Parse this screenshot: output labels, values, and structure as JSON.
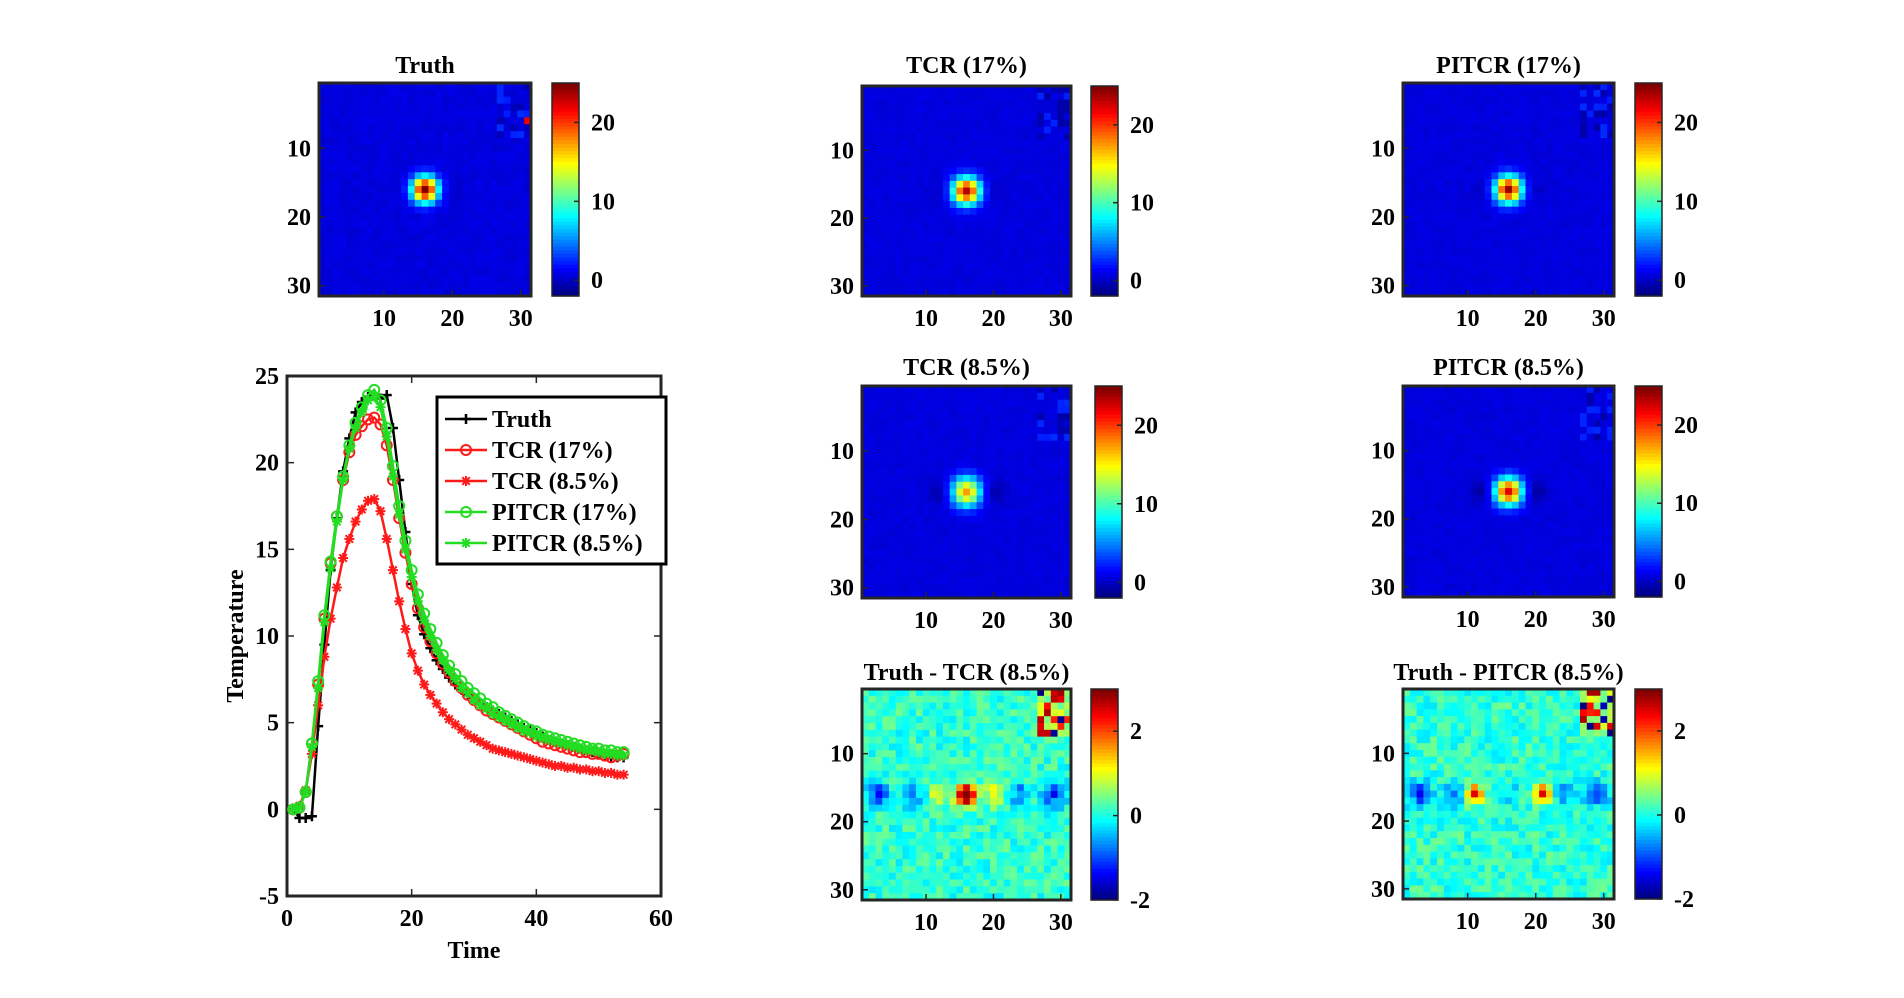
{
  "chart_data": [
    {
      "type": "heatmap",
      "id": "truth",
      "title": "Truth",
      "xticks": [
        "10",
        "20",
        "30"
      ],
      "yticks": [
        "10",
        "20",
        "30"
      ],
      "colorbar_ticks": [
        "0",
        "10",
        "20"
      ],
      "clim": [
        -2,
        25
      ],
      "peak": 25,
      "spot_sigma": 1.3,
      "dark_lobes": 0.5,
      "noise": 0.6,
      "corner_artifacts": true
    },
    {
      "type": "heatmap",
      "id": "tcr17",
      "title": "TCR (17%)",
      "xticks": [
        "10",
        "20",
        "30"
      ],
      "yticks": [
        "10",
        "20",
        "30"
      ],
      "colorbar_ticks": [
        "0",
        "10",
        "20"
      ],
      "clim": [
        -2,
        25
      ],
      "peak": 23,
      "spot_sigma": 1.4,
      "dark_lobes": 0.6,
      "noise": 0.5,
      "corner_artifacts": true
    },
    {
      "type": "heatmap",
      "id": "pitcr17",
      "title": "PITCR (17%)",
      "xticks": [
        "10",
        "20",
        "30"
      ],
      "yticks": [
        "10",
        "20",
        "30"
      ],
      "colorbar_ticks": [
        "0",
        "10",
        "20"
      ],
      "clim": [
        -2,
        25
      ],
      "peak": 24,
      "spot_sigma": 1.35,
      "dark_lobes": 0.6,
      "noise": 0.5,
      "corner_artifacts": true
    },
    {
      "type": "heatmap",
      "id": "tcr85",
      "title": "TCR (8.5%)",
      "xticks": [
        "10",
        "20",
        "30"
      ],
      "yticks": [
        "10",
        "20",
        "30"
      ],
      "colorbar_ticks": [
        "0",
        "10",
        "20"
      ],
      "clim": [
        -2,
        25
      ],
      "peak": 17,
      "spot_sigma": 1.5,
      "dark_lobes": 1.6,
      "noise": 0.5,
      "corner_artifacts": true
    },
    {
      "type": "heatmap",
      "id": "pitcr85",
      "title": "PITCR (8.5%)",
      "xticks": [
        "10",
        "20",
        "30"
      ],
      "yticks": [
        "10",
        "20",
        "30"
      ],
      "colorbar_ticks": [
        "0",
        "10",
        "20"
      ],
      "clim": [
        -2,
        25
      ],
      "peak": 22,
      "spot_sigma": 1.4,
      "dark_lobes": 1.8,
      "noise": 0.5,
      "corner_artifacts": true
    },
    {
      "type": "heatmap",
      "id": "diff_tcr",
      "title": "Truth - TCR (8.5%)",
      "xticks": [
        "10",
        "20",
        "30"
      ],
      "yticks": [
        "10",
        "20",
        "30"
      ],
      "colorbar_ticks": [
        "-2",
        "0",
        "2"
      ],
      "clim": [
        -2,
        3
      ],
      "diff_mode": "center",
      "noise": 0.35
    },
    {
      "type": "heatmap",
      "id": "diff_pitcr",
      "title": "Truth - PITCR (8.5%)",
      "xticks": [
        "10",
        "20",
        "30"
      ],
      "yticks": [
        "10",
        "20",
        "30"
      ],
      "colorbar_ticks": [
        "-2",
        "0",
        "2"
      ],
      "clim": [
        -2,
        3
      ],
      "diff_mode": "twin",
      "noise": 0.35
    },
    {
      "type": "line",
      "id": "temperature_curve",
      "title": "",
      "xlabel": "Time",
      "ylabel": "Temperature",
      "xlim": [
        0,
        60
      ],
      "ylim": [
        -5,
        25
      ],
      "xticks": [
        "0",
        "20",
        "40",
        "60"
      ],
      "yticks": [
        "-5",
        "0",
        "5",
        "10",
        "15",
        "20",
        "25"
      ],
      "x": [
        1,
        2,
        3,
        4,
        5,
        6,
        7,
        8,
        9,
        10,
        11,
        12,
        13,
        14,
        15,
        16,
        17,
        18,
        19,
        20,
        21,
        22,
        23,
        24,
        25,
        26,
        27,
        28,
        29,
        30,
        31,
        32,
        33,
        34,
        35,
        36,
        37,
        38,
        39,
        40,
        41,
        42,
        43,
        44,
        45,
        46,
        47,
        48,
        49,
        50,
        51,
        52,
        53,
        54
      ],
      "series": [
        {
          "name": "Truth",
          "color": "#000000",
          "marker": "plus",
          "values": [
            0.0,
            -0.5,
            -0.5,
            -0.4,
            4.8,
            9.5,
            13.8,
            16.8,
            19.5,
            21.4,
            22.9,
            23.5,
            23.8,
            23.9,
            23.7,
            23.9,
            22.0,
            19.0,
            16.0,
            13.0,
            11.2,
            10.1,
            9.3,
            8.6,
            8.1,
            7.6,
            7.2,
            6.9,
            6.6,
            6.3,
            6.1,
            5.9,
            5.7,
            5.5,
            5.3,
            5.1,
            4.9,
            4.7,
            4.6,
            4.4,
            4.2,
            4.0,
            3.9,
            3.8,
            3.7,
            3.6,
            3.5,
            3.4,
            3.3,
            3.2,
            3.1,
            3.0,
            3.0,
            3.0
          ]
        },
        {
          "name": "TCR (17%)",
          "color": "#ff1a1a",
          "marker": "circle",
          "values": [
            0.0,
            0.1,
            1.0,
            3.8,
            7.2,
            11.0,
            14.2,
            16.9,
            19.0,
            20.6,
            21.6,
            22.1,
            22.5,
            22.6,
            22.2,
            21.0,
            19.0,
            16.8,
            14.8,
            13.0,
            11.6,
            10.5,
            9.7,
            9.0,
            8.4,
            7.9,
            7.4,
            7.0,
            6.6,
            6.3,
            6.0,
            5.7,
            5.5,
            5.3,
            5.1,
            4.9,
            4.7,
            4.5,
            4.3,
            4.1,
            3.9,
            3.8,
            3.7,
            3.6,
            3.5,
            3.4,
            3.3,
            3.3,
            3.2,
            3.2,
            3.1,
            3.0,
            3.1,
            3.2
          ]
        },
        {
          "name": "TCR (8.5%)",
          "color": "#ff1a1a",
          "marker": "star",
          "values": [
            0.0,
            0.2,
            1.1,
            3.2,
            6.0,
            8.8,
            11.0,
            12.8,
            14.5,
            15.6,
            16.6,
            17.3,
            17.8,
            17.9,
            17.2,
            15.6,
            13.8,
            12.0,
            10.4,
            9.0,
            8.0,
            7.2,
            6.6,
            6.1,
            5.6,
            5.2,
            4.9,
            4.6,
            4.3,
            4.1,
            3.9,
            3.7,
            3.5,
            3.4,
            3.3,
            3.2,
            3.1,
            3.0,
            2.9,
            2.8,
            2.7,
            2.6,
            2.5,
            2.5,
            2.4,
            2.4,
            2.3,
            2.3,
            2.2,
            2.2,
            2.1,
            2.1,
            2.0,
            2.0
          ]
        },
        {
          "name": "PITCR (17%)",
          "color": "#22dd22",
          "marker": "circle",
          "values": [
            0.0,
            0.1,
            1.0,
            3.8,
            7.4,
            11.2,
            14.3,
            16.9,
            19.2,
            21.0,
            22.3,
            23.2,
            23.9,
            24.2,
            23.6,
            22.0,
            19.8,
            17.5,
            15.5,
            13.8,
            12.4,
            11.3,
            10.4,
            9.6,
            8.9,
            8.3,
            7.8,
            7.4,
            7.0,
            6.7,
            6.4,
            6.1,
            5.9,
            5.6,
            5.4,
            5.2,
            5.0,
            4.8,
            4.6,
            4.5,
            4.3,
            4.2,
            4.1,
            4.0,
            3.9,
            3.8,
            3.7,
            3.6,
            3.5,
            3.5,
            3.4,
            3.4,
            3.3,
            3.3
          ]
        },
        {
          "name": "PITCR (8.5%)",
          "color": "#22dd22",
          "marker": "star",
          "values": [
            0.0,
            0.1,
            1.0,
            3.6,
            7.0,
            10.8,
            13.9,
            16.6,
            19.0,
            20.8,
            22.0,
            22.9,
            23.6,
            23.8,
            23.2,
            21.5,
            19.2,
            17.0,
            15.0,
            13.4,
            12.0,
            10.9,
            10.0,
            9.2,
            8.6,
            8.0,
            7.5,
            7.0,
            6.7,
            6.3,
            6.0,
            5.8,
            5.5,
            5.3,
            5.1,
            4.9,
            4.7,
            4.5,
            4.4,
            4.2,
            4.1,
            4.0,
            3.9,
            3.8,
            3.7,
            3.6,
            3.5,
            3.4,
            3.4,
            3.3,
            3.2,
            3.2,
            3.1,
            3.1
          ]
        }
      ],
      "legend_position": "top-right"
    }
  ]
}
